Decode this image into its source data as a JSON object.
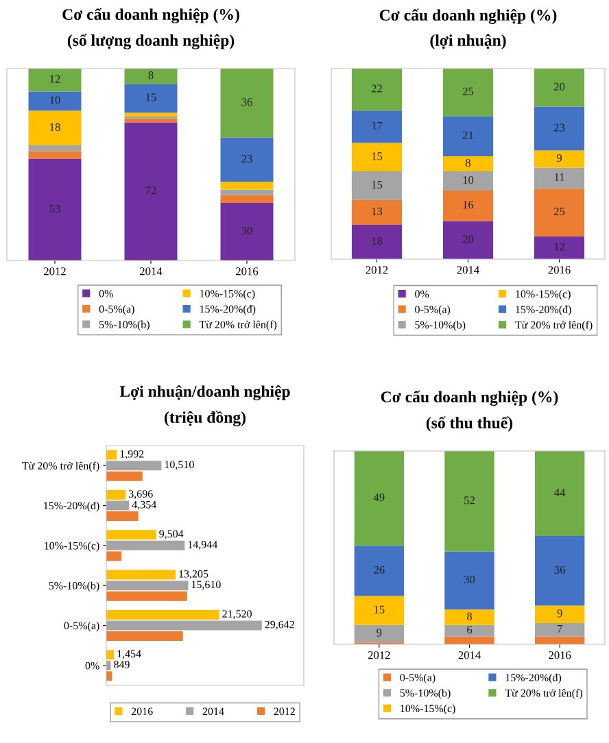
{
  "chart_data": [
    {
      "type": "bar",
      "stacked": true,
      "title": "Cơ cấu doanh nghiệp (%)",
      "subtitle": "(số lượng doanh nghiệp)",
      "categories": [
        "2012",
        "2014",
        "2016"
      ],
      "legend": "bottom",
      "series": [
        {
          "name": "0%",
          "color": "#7030a0",
          "values": [
            53,
            72,
            30
          ],
          "value_labels": [
            "53",
            "72",
            "30"
          ]
        },
        {
          "name": "0-5%(a)",
          "color": "#ed7d31",
          "values": [
            4,
            2,
            4
          ],
          "value_labels": [
            null,
            null,
            null
          ]
        },
        {
          "name": "5%-10%(b)",
          "color": "#a5a5a5",
          "values": [
            3,
            1,
            3
          ],
          "value_labels": [
            null,
            null,
            null
          ]
        },
        {
          "name": "10%-15%(c)",
          "color": "#ffc000",
          "values": [
            18,
            2,
            4
          ],
          "value_labels": [
            "18",
            null,
            null
          ]
        },
        {
          "name": "15%-20%(đ)",
          "color": "#4472c4",
          "values": [
            10,
            15,
            23
          ],
          "value_labels": [
            "10",
            "15",
            "23"
          ]
        },
        {
          "name": "Từ 20% trở lên(f)",
          "color": "#70ad47",
          "values": [
            12,
            8,
            36
          ],
          "value_labels": [
            "12",
            "8",
            "36"
          ]
        }
      ]
    },
    {
      "type": "bar",
      "stacked": true,
      "title": "Cơ cấu doanh nghiệp (%)",
      "subtitle": "(lợi nhuận)",
      "categories": [
        "2012",
        "2014",
        "2016"
      ],
      "legend": "bottom",
      "series": [
        {
          "name": "0%",
          "color": "#7030a0",
          "values": [
            18,
            20,
            12
          ],
          "value_labels": [
            "18",
            "20",
            "12"
          ]
        },
        {
          "name": "0-5%(a)",
          "color": "#ed7d31",
          "values": [
            13,
            16,
            25
          ],
          "value_labels": [
            "13",
            "16",
            "25"
          ]
        },
        {
          "name": "5%-10%(b)",
          "color": "#a5a5a5",
          "values": [
            15,
            10,
            11
          ],
          "value_labels": [
            "15",
            "10",
            "11"
          ]
        },
        {
          "name": "10%-15%(c)",
          "color": "#ffc000",
          "values": [
            15,
            8,
            9
          ],
          "value_labels": [
            "15",
            "8",
            "9"
          ]
        },
        {
          "name": "15%-20%(đ)",
          "color": "#4472c4",
          "values": [
            17,
            21,
            23
          ],
          "value_labels": [
            "17",
            "21",
            "23"
          ]
        },
        {
          "name": "Từ 20% trở lên(f)",
          "color": "#70ad47",
          "values": [
            22,
            25,
            20
          ],
          "value_labels": [
            "22",
            "25",
            "20"
          ]
        }
      ]
    },
    {
      "type": "bar",
      "orientation": "horizontal",
      "title": "Lợi nhuận/doanh nghiệp",
      "subtitle": "(triệu đồng)",
      "categories": [
        "Từ 20% trở lên(f)",
        "15%-20%(đ)",
        "10%-15%(c)",
        "5%-10%(b)",
        "0-5%(a)",
        "0%"
      ],
      "legend": "bottom",
      "series": [
        {
          "name": "2016",
          "color": "#ffc000",
          "values": [
            1992,
            3696,
            9504,
            13205,
            21520,
            1454
          ],
          "value_labels": [
            "1,992",
            "3,696",
            "9,504",
            "13,205",
            "21,520",
            "1,454"
          ]
        },
        {
          "name": "2014",
          "color": "#a5a5a5",
          "values": [
            10510,
            4354,
            14944,
            15610,
            29642,
            849
          ],
          "value_labels": [
            "10,510",
            "4,354",
            "14,944",
            "15,610",
            "29,642",
            "849"
          ]
        },
        {
          "name": "2012",
          "color": "#ed7d31",
          "values": [
            6900,
            6100,
            2900,
            15400,
            14600,
            1100
          ],
          "value_labels": [
            null,
            null,
            null,
            null,
            null,
            null
          ]
        }
      ]
    },
    {
      "type": "bar",
      "stacked": true,
      "title": "Cơ cấu doanh nghiệp (%)",
      "subtitle": "(số thu thuế)",
      "categories": [
        "2012",
        "2014",
        "2016"
      ],
      "legend": "bottom",
      "series": [
        {
          "name": "0-5%(a)",
          "color": "#ed7d31",
          "values": [
            1,
            4,
            4
          ],
          "value_labels": [
            null,
            null,
            null
          ]
        },
        {
          "name": "5%-10%(b)",
          "color": "#a5a5a5",
          "values": [
            9,
            6,
            7
          ],
          "value_labels": [
            "9",
            "6",
            "7"
          ]
        },
        {
          "name": "10%-15%(c)",
          "color": "#ffc000",
          "values": [
            15,
            8,
            9
          ],
          "value_labels": [
            "15",
            "8",
            "9"
          ]
        },
        {
          "name": "15%-20%(đ)",
          "color": "#4472c4",
          "values": [
            26,
            30,
            36
          ],
          "value_labels": [
            "26",
            "30",
            "36"
          ]
        },
        {
          "name": "Từ 20% trở lên(f)",
          "color": "#70ad47",
          "values": [
            49,
            52,
            44
          ],
          "value_labels": [
            "49",
            "52",
            "44"
          ]
        }
      ]
    }
  ]
}
